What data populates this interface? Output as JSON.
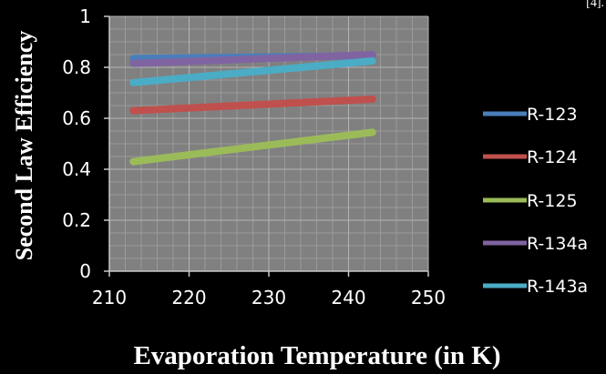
{
  "corner_note": "[4].",
  "chart_data": {
    "type": "line",
    "title": "",
    "xlabel": "Evaporation Temperature (in K)",
    "ylabel": "Second Law Efficiency",
    "xlim": [
      210,
      250
    ],
    "ylim": [
      0,
      1
    ],
    "x_ticks": [
      210,
      220,
      230,
      240,
      250
    ],
    "y_ticks": [
      0,
      0.2,
      0.4,
      0.6,
      0.8,
      1
    ],
    "x_tick_labels": [
      "210",
      "220",
      "230",
      "240",
      "250"
    ],
    "y_tick_labels": [
      "0",
      "0.2",
      "0.4",
      "0.6",
      "0.8",
      "1"
    ],
    "grid": true,
    "legend_position": "right",
    "plot_background": "#808080",
    "grid_color": "#9a9a9a",
    "series": [
      {
        "name": "R-123",
        "color": "#4a7ebb",
        "x": [
          213,
          243
        ],
        "y": [
          0.835,
          0.845
        ]
      },
      {
        "name": "R-124",
        "color": "#c0504d",
        "x": [
          213,
          243
        ],
        "y": [
          0.63,
          0.675
        ]
      },
      {
        "name": "R-125",
        "color": "#9bbb59",
        "x": [
          213,
          243
        ],
        "y": [
          0.43,
          0.545
        ]
      },
      {
        "name": "R-134a",
        "color": "#8064a2",
        "x": [
          213,
          243
        ],
        "y": [
          0.815,
          0.85
        ]
      },
      {
        "name": "R-143a",
        "color": "#4bacc6",
        "x": [
          213,
          243
        ],
        "y": [
          0.74,
          0.825
        ]
      }
    ]
  }
}
